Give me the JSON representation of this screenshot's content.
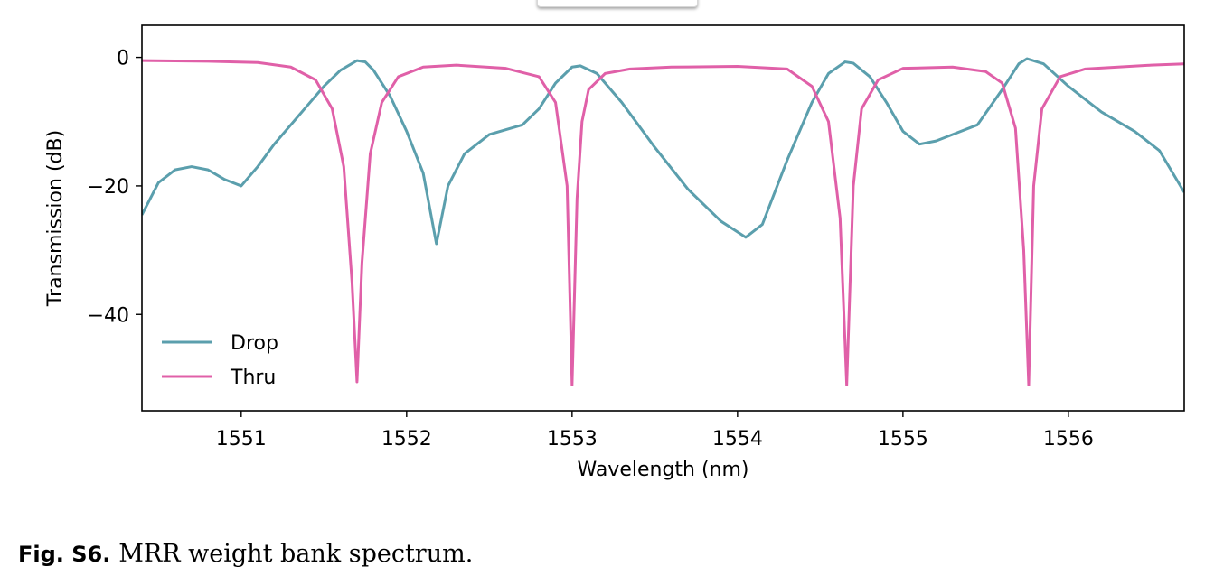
{
  "figure": {
    "caption_label": "Fig. S6.",
    "caption_text": "MRR weight bank spectrum."
  },
  "chart_data": {
    "type": "line",
    "title": "",
    "xlabel": "Wavelength (nm)",
    "ylabel": "Transmission (dB)",
    "xlim": [
      1550.4,
      1556.7
    ],
    "ylim": [
      -55,
      5
    ],
    "xticks": [
      1551,
      1552,
      1553,
      1554,
      1555,
      1556
    ],
    "yticks": [
      0,
      -20,
      -40
    ],
    "xtick_labels": [
      "1551",
      "1552",
      "1553",
      "1554",
      "1555",
      "1556"
    ],
    "ytick_labels": [
      "0",
      "−20",
      "−40"
    ],
    "grid": false,
    "legend_position": "lower-left",
    "series": [
      {
        "name": "Drop",
        "color": "#5b9fad",
        "x": [
          1550.4,
          1550.5,
          1550.6,
          1550.7,
          1550.8,
          1550.9,
          1551.0,
          1551.1,
          1551.2,
          1551.3,
          1551.4,
          1551.5,
          1551.6,
          1551.7,
          1551.75,
          1551.8,
          1551.9,
          1552.0,
          1552.1,
          1552.18,
          1552.25,
          1552.35,
          1552.5,
          1552.7,
          1552.8,
          1552.9,
          1553.0,
          1553.05,
          1553.15,
          1553.3,
          1553.5,
          1553.7,
          1553.9,
          1554.05,
          1554.15,
          1554.3,
          1554.45,
          1554.55,
          1554.65,
          1554.7,
          1554.8,
          1554.9,
          1555.0,
          1555.1,
          1555.2,
          1555.3,
          1555.45,
          1555.6,
          1555.7,
          1555.75,
          1555.85,
          1556.0,
          1556.2,
          1556.4,
          1556.55,
          1556.7
        ],
        "y": [
          -24.5,
          -19.5,
          -17.5,
          -17.0,
          -17.5,
          -19.0,
          -20.0,
          -17.0,
          -13.5,
          -10.5,
          -7.5,
          -4.5,
          -2.0,
          -0.5,
          -0.7,
          -2.0,
          -6.0,
          -11.5,
          -18.0,
          -29.0,
          -20.0,
          -15.0,
          -12.0,
          -10.5,
          -8.0,
          -4.0,
          -1.5,
          -1.3,
          -2.5,
          -7.0,
          -14.0,
          -20.5,
          -25.5,
          -28.0,
          -26.0,
          -16.0,
          -7.0,
          -2.5,
          -0.7,
          -0.9,
          -3.0,
          -7.0,
          -11.5,
          -13.5,
          -13.0,
          -12.0,
          -10.5,
          -5.0,
          -1.0,
          -0.2,
          -1.0,
          -4.5,
          -8.5,
          -11.5,
          -14.5,
          -21.0
        ]
      },
      {
        "name": "Thru",
        "color": "#e060a8",
        "x": [
          1550.4,
          1550.8,
          1551.1,
          1551.3,
          1551.45,
          1551.55,
          1551.62,
          1551.67,
          1551.7,
          1551.73,
          1551.78,
          1551.85,
          1551.95,
          1552.1,
          1552.3,
          1552.6,
          1552.8,
          1552.9,
          1552.97,
          1553.0,
          1553.03,
          1553.06,
          1553.1,
          1553.2,
          1553.35,
          1553.6,
          1554.0,
          1554.3,
          1554.45,
          1554.55,
          1554.62,
          1554.66,
          1554.7,
          1554.75,
          1554.85,
          1555.0,
          1555.3,
          1555.5,
          1555.6,
          1555.68,
          1555.73,
          1555.76,
          1555.79,
          1555.84,
          1555.95,
          1556.1,
          1556.3,
          1556.5,
          1556.7
        ],
        "y": [
          -0.5,
          -0.6,
          -0.8,
          -1.5,
          -3.5,
          -8.0,
          -17.0,
          -35.0,
          -50.5,
          -32.0,
          -15.0,
          -7.0,
          -3.0,
          -1.5,
          -1.2,
          -1.7,
          -3.0,
          -7.0,
          -20.0,
          -51.0,
          -22.0,
          -10.0,
          -5.0,
          -2.5,
          -1.8,
          -1.5,
          -1.4,
          -1.8,
          -4.5,
          -10.0,
          -25.0,
          -51.0,
          -20.0,
          -8.0,
          -3.5,
          -1.7,
          -1.5,
          -2.2,
          -4.0,
          -11.0,
          -30.0,
          -51.0,
          -20.0,
          -8.0,
          -3.0,
          -1.8,
          -1.5,
          -1.2,
          -1.0
        ]
      }
    ]
  }
}
